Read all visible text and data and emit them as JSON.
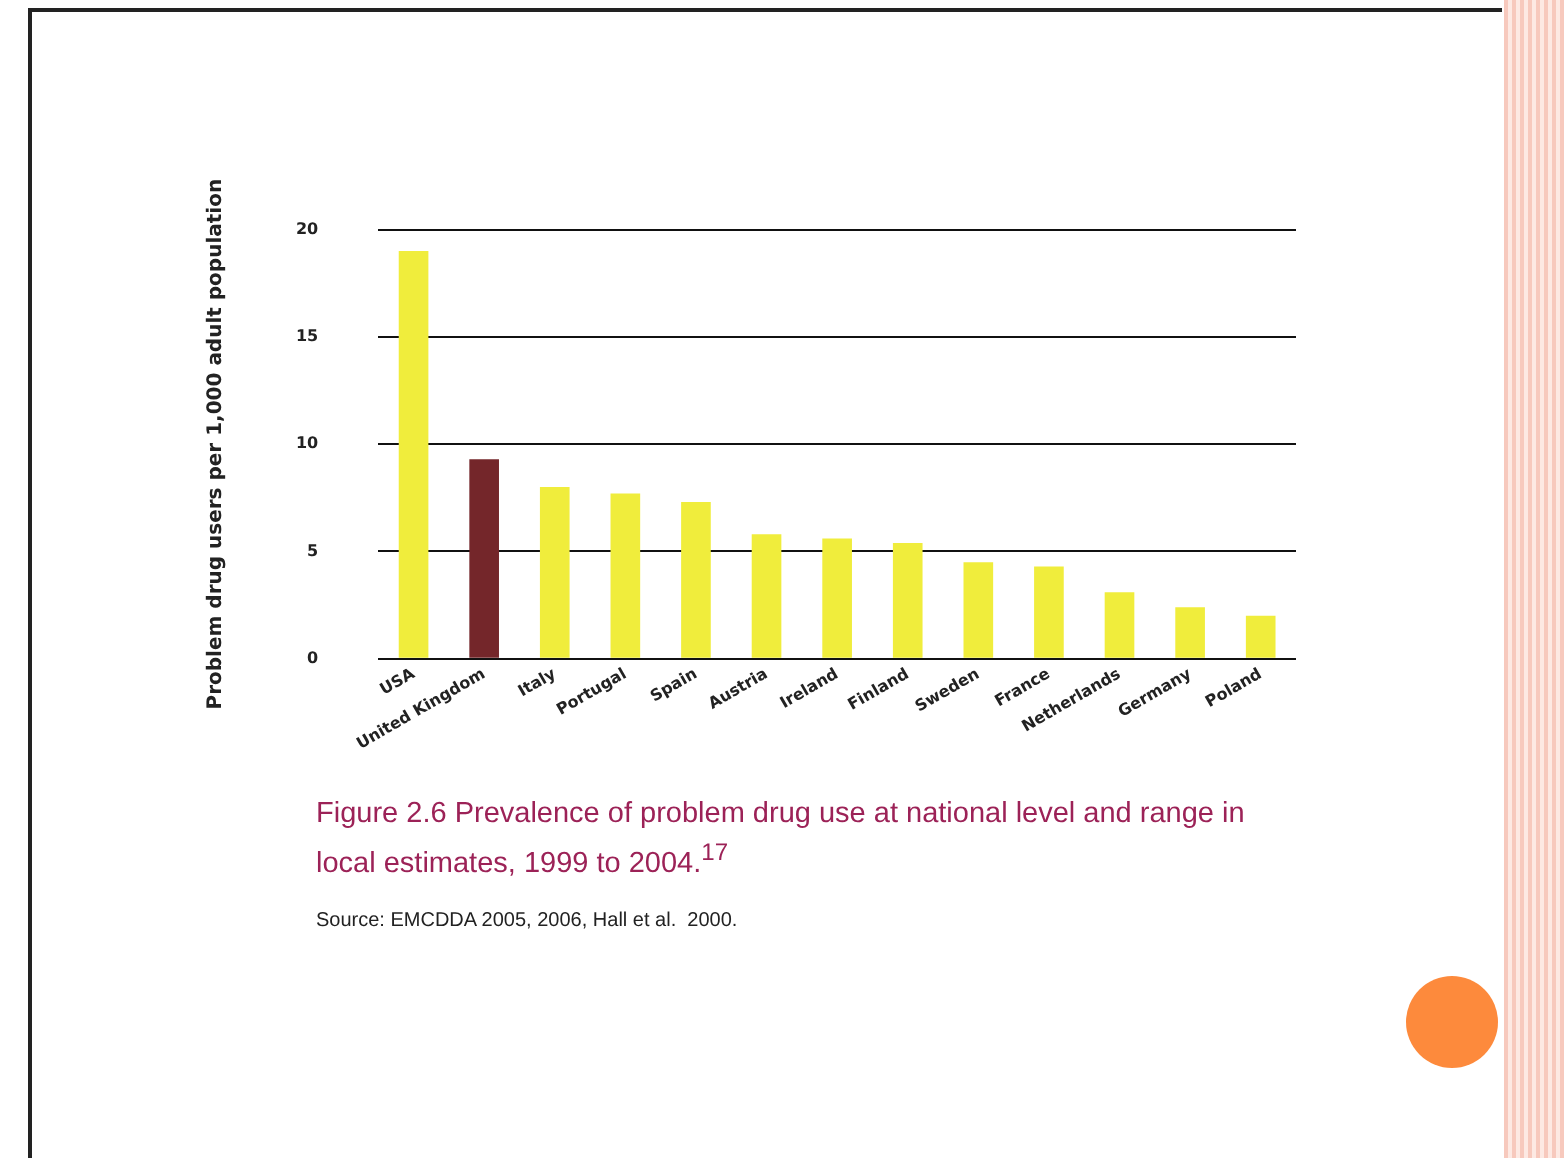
{
  "chart_data": {
    "type": "bar",
    "title": "Figure 2.6  Prevalence of problem drug use at national level and range in local estimates, 1999 to 2004.$^{17}$",
    "ylabel": "Problem drug users per 1,000 adult population",
    "categories": [
      "USA",
      "United Kingdom",
      "Italy",
      "Portugal",
      "Spain",
      "Austria",
      "Ireland",
      "Finland",
      "Sweden",
      "France",
      "Netherlands",
      "Germany",
      "Poland"
    ],
    "values": [
      19.0,
      9.3,
      8.0,
      7.7,
      7.3,
      5.8,
      5.6,
      5.4,
      4.5,
      4.3,
      3.1,
      2.4,
      2.0
    ],
    "colors": [
      "#f0ed3c",
      "#74262a",
      "#f0ed3c",
      "#f0ed3c",
      "#f0ed3c",
      "#f0ed3c",
      "#f0ed3c",
      "#f0ed3c",
      "#f0ed3c",
      "#f0ed3c",
      "#f0ed3c",
      "#f0ed3c",
      "#f0ed3c"
    ],
    "ylim": [
      0,
      20
    ],
    "yticks": [
      0,
      5,
      10,
      15,
      20
    ],
    "grid": "y",
    "legend": false,
    "annotations": [
      "Source: EMCDDA 2005, 2006, Hall et al.  2000."
    ]
  }
}
